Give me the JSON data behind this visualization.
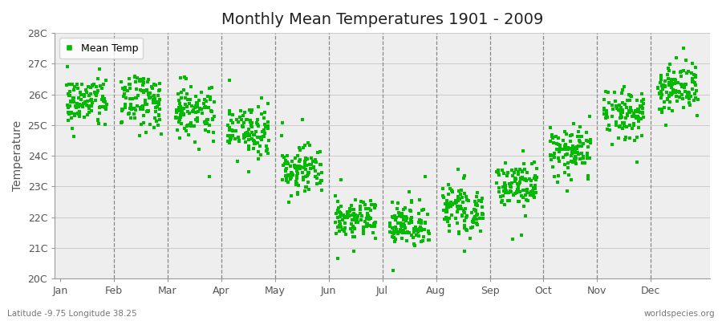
{
  "title": "Monthly Mean Temperatures 1901 - 2009",
  "ylabel": "Temperature",
  "subtitle_left": "Latitude -9.75 Longitude 38.25",
  "subtitle_right": "worldspecies.org",
  "legend_label": "Mean Temp",
  "ytick_labels": [
    "20C",
    "21C",
    "22C",
    "23C",
    "24C",
    "25C",
    "26C",
    "27C",
    "28C"
  ],
  "ytick_values": [
    20,
    21,
    22,
    23,
    24,
    25,
    26,
    27,
    28
  ],
  "months": [
    "Jan",
    "Feb",
    "Mar",
    "Apr",
    "May",
    "Jun",
    "Jul",
    "Aug",
    "Sep",
    "Oct",
    "Nov",
    "Dec"
  ],
  "mean_temps": [
    25.75,
    25.8,
    25.5,
    24.75,
    23.55,
    21.9,
    21.7,
    22.2,
    23.0,
    24.1,
    25.4,
    26.2
  ],
  "std_temps": [
    0.42,
    0.42,
    0.4,
    0.38,
    0.35,
    0.3,
    0.38,
    0.35,
    0.33,
    0.36,
    0.4,
    0.42
  ],
  "marker_color": "#00bb00",
  "marker_size": 3.5,
  "bg_color": "#ffffff",
  "plot_bg_color": "#eeeeee",
  "n_years": 109,
  "seed": 42,
  "title_fontsize": 14,
  "axis_fontsize": 10,
  "tick_fontsize": 9,
  "legend_fontsize": 9
}
